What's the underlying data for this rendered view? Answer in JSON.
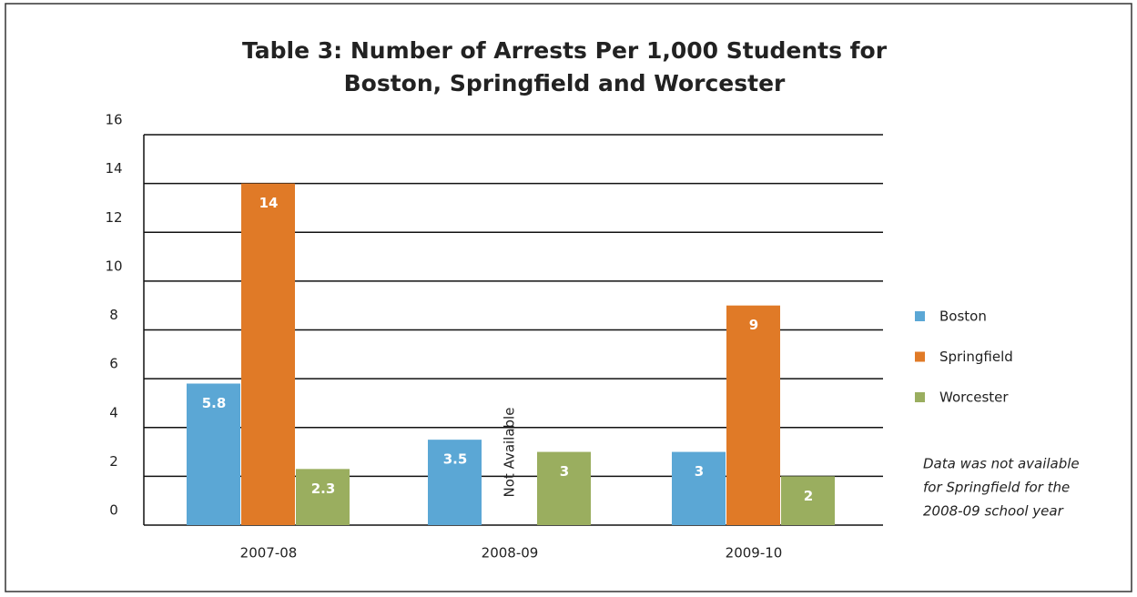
{
  "chart_data": {
    "type": "bar",
    "title": [
      "Table 3: Number of Arrests Per 1,000 Students for",
      "Boston, Springfield and Worcester"
    ],
    "categories": [
      "2007-08",
      "2008-09",
      "2009-10"
    ],
    "series": [
      {
        "name": "Boston",
        "color": "#5ba7d5",
        "values": [
          5.8,
          3.5,
          3
        ]
      },
      {
        "name": "Springfield",
        "color": "#e07a27",
        "values": [
          14,
          null,
          9
        ]
      },
      {
        "name": "Worcester",
        "color": "#9aae5f",
        "values": [
          2.3,
          3,
          2
        ]
      }
    ],
    "annotation": "Not Available",
    "note": [
      "Data was not available",
      "for Springfield for the",
      "2008-09 school year"
    ],
    "ylim": [
      0,
      16
    ],
    "yticks": [
      0,
      2,
      4,
      6,
      8,
      10,
      12,
      14,
      16
    ],
    "grid": true,
    "legend": "right"
  }
}
